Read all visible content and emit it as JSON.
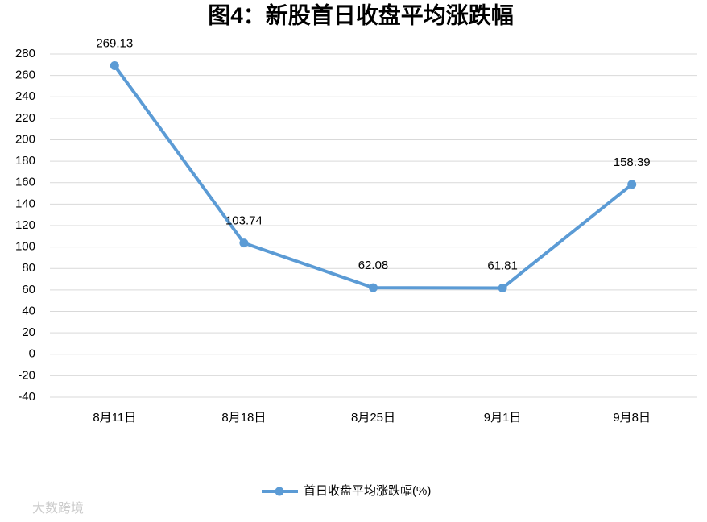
{
  "chart_data": {
    "type": "line",
    "title": "图4：新股首日收盘平均涨跌幅",
    "categories": [
      "8月11日",
      "8月18日",
      "8月25日",
      "9月1日",
      "9月8日"
    ],
    "series": [
      {
        "name": "首日收盘平均涨跌幅(%)",
        "color": "#5b9bd5",
        "values": [
          269.13,
          103.74,
          62.08,
          61.81,
          158.39
        ]
      }
    ],
    "ylim": [
      -40,
      280
    ],
    "yticks": [
      -40,
      -20,
      0,
      20,
      40,
      60,
      80,
      100,
      120,
      140,
      160,
      180,
      200,
      220,
      240,
      260,
      280
    ],
    "grid": true,
    "legend": "bottom",
    "watermark": "大数跨境"
  }
}
